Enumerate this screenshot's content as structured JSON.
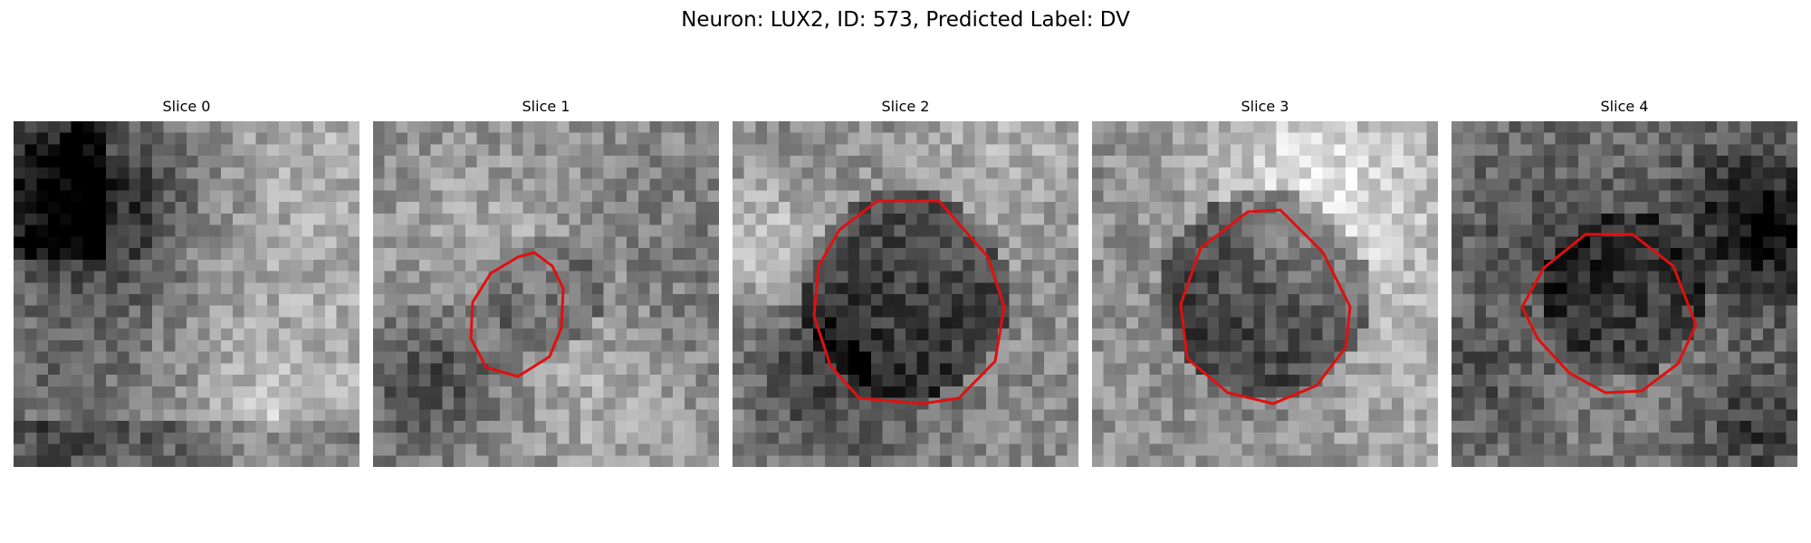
{
  "figure": {
    "title": "Neuron: LUX2, ID: 573, Predicted Label: DV"
  },
  "colors": {
    "roi_outline": "#e01010",
    "background": "#ffffff"
  },
  "slices": [
    {
      "title": "Slice 0",
      "pattern": "bright-center",
      "seed": 11,
      "roi": false
    },
    {
      "title": "Slice 1",
      "pattern": "mixed",
      "seed": 23,
      "roi": true
    },
    {
      "title": "Slice 2",
      "pattern": "dark-center",
      "seed": 37,
      "roi": true
    },
    {
      "title": "Slice 3",
      "pattern": "dark-center",
      "seed": 51,
      "roi": true
    },
    {
      "title": "Slice 4",
      "pattern": "mixed-dark",
      "seed": 67,
      "roi": true
    }
  ]
}
